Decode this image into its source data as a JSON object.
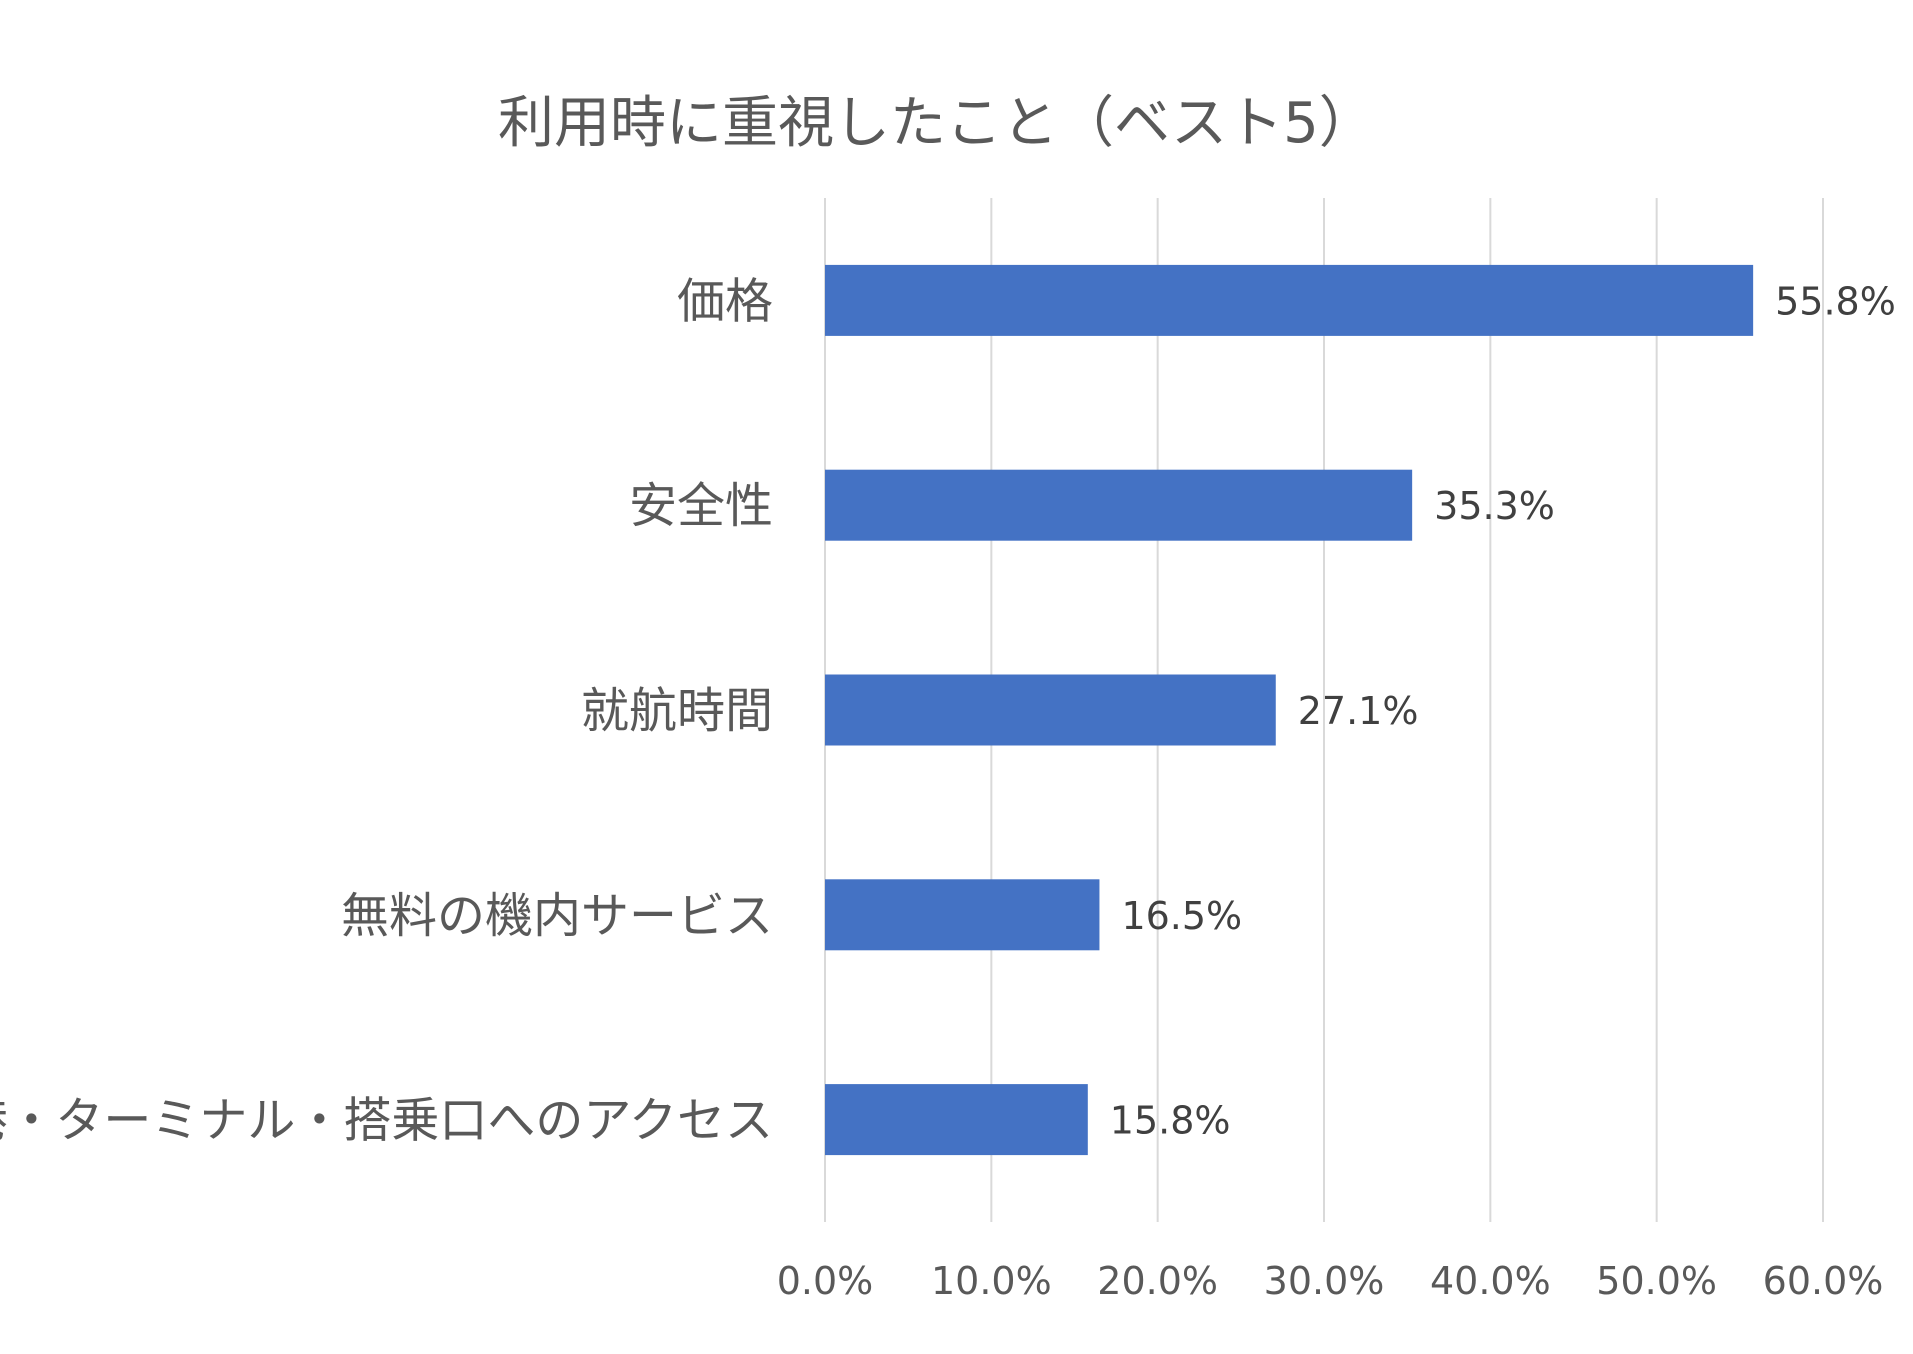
{
  "chart_data": {
    "type": "bar",
    "orientation": "horizontal",
    "title": "利用時に重視したこと（ベスト5）",
    "categories": [
      "価格",
      "安全性",
      "就航時間",
      "無料の機内サービス",
      "空港・ターミナル・搭乗口へのアクセス"
    ],
    "values": [
      55.8,
      35.3,
      27.1,
      16.5,
      15.8
    ],
    "data_labels": [
      "55.8%",
      "35.3%",
      "27.1%",
      "16.5%",
      "15.8%"
    ],
    "x_ticks": [
      0,
      10,
      20,
      30,
      40,
      50,
      60
    ],
    "x_tick_labels": [
      "0.0%",
      "10.0%",
      "20.0%",
      "30.0%",
      "40.0%",
      "50.0%",
      "60.0%"
    ],
    "xlim": [
      0,
      60
    ],
    "xlabel": "",
    "ylabel": "",
    "grid": true,
    "legend": "none",
    "colors": {
      "bar": "#4472C4",
      "grid": "#D9D9D9",
      "text": "#595959",
      "label": "#404040"
    }
  }
}
